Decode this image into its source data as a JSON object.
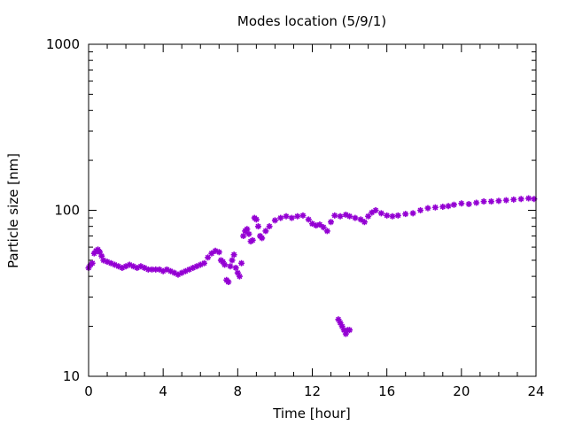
{
  "chart_data": {
    "type": "scatter",
    "title": "Modes location (5/9/1)",
    "xlabel": "Time [hour]",
    "ylabel": "Particle size [nm]",
    "xlim": [
      0,
      24
    ],
    "ylim": [
      10,
      1000
    ],
    "yscale": "log",
    "xticks": [
      "0",
      "4",
      "8",
      "12",
      "16",
      "20",
      "24"
    ],
    "yticks": [
      "10",
      "100",
      "1000"
    ],
    "grid": false,
    "legend": "none",
    "marker_color": "#9400D3",
    "series": [
      {
        "marker": "star",
        "points": [
          [
            0.0,
            45
          ],
          [
            0.1,
            47
          ],
          [
            0.2,
            48
          ],
          [
            0.3,
            55
          ],
          [
            0.4,
            57
          ],
          [
            0.5,
            58
          ],
          [
            0.6,
            56
          ],
          [
            0.7,
            53
          ],
          [
            0.8,
            50
          ],
          [
            1.0,
            49
          ],
          [
            1.2,
            48
          ],
          [
            1.4,
            47
          ],
          [
            1.6,
            46
          ],
          [
            1.8,
            45
          ],
          [
            2.0,
            46
          ],
          [
            2.2,
            47
          ],
          [
            2.4,
            46
          ],
          [
            2.6,
            45
          ],
          [
            2.8,
            46
          ],
          [
            3.0,
            45
          ],
          [
            3.2,
            44
          ],
          [
            3.4,
            44
          ],
          [
            3.6,
            44
          ],
          [
            3.8,
            44
          ],
          [
            4.0,
            43
          ],
          [
            4.2,
            44
          ],
          [
            4.4,
            43
          ],
          [
            4.6,
            42
          ],
          [
            4.8,
            41
          ],
          [
            5.0,
            42
          ],
          [
            5.2,
            43
          ],
          [
            5.4,
            44
          ],
          [
            5.6,
            45
          ],
          [
            5.8,
            46
          ],
          [
            6.0,
            47
          ],
          [
            6.2,
            48
          ],
          [
            6.4,
            52
          ],
          [
            6.6,
            55
          ],
          [
            6.8,
            57
          ],
          [
            7.0,
            56
          ],
          [
            7.1,
            50
          ],
          [
            7.2,
            49
          ],
          [
            7.3,
            47
          ],
          [
            7.4,
            38
          ],
          [
            7.5,
            37
          ],
          [
            7.6,
            46
          ],
          [
            7.7,
            50
          ],
          [
            7.8,
            54
          ],
          [
            7.9,
            45
          ],
          [
            8.0,
            42
          ],
          [
            8.1,
            40
          ],
          [
            8.2,
            48
          ],
          [
            8.3,
            70
          ],
          [
            8.4,
            75
          ],
          [
            8.5,
            77
          ],
          [
            8.6,
            72
          ],
          [
            8.7,
            65
          ],
          [
            8.8,
            66
          ],
          [
            8.9,
            90
          ],
          [
            9.0,
            88
          ],
          [
            9.1,
            80
          ],
          [
            9.2,
            70
          ],
          [
            9.3,
            68
          ],
          [
            9.5,
            75
          ],
          [
            9.7,
            80
          ],
          [
            10.0,
            87
          ],
          [
            10.3,
            90
          ],
          [
            10.6,
            92
          ],
          [
            10.9,
            90
          ],
          [
            11.2,
            92
          ],
          [
            11.5,
            93
          ],
          [
            11.8,
            88
          ],
          [
            12.0,
            83
          ],
          [
            12.2,
            81
          ],
          [
            12.4,
            82
          ],
          [
            12.6,
            79
          ],
          [
            12.8,
            75
          ],
          [
            13.0,
            85
          ],
          [
            13.2,
            93
          ],
          [
            13.5,
            92
          ],
          [
            13.8,
            94
          ],
          [
            14.0,
            92
          ],
          [
            14.3,
            90
          ],
          [
            14.6,
            88
          ],
          [
            14.8,
            85
          ],
          [
            15.0,
            92
          ],
          [
            15.2,
            97
          ],
          [
            15.4,
            100
          ],
          [
            15.7,
            96
          ],
          [
            16.0,
            93
          ],
          [
            16.3,
            92
          ],
          [
            16.6,
            93
          ],
          [
            17.0,
            95
          ],
          [
            17.4,
            96
          ],
          [
            17.8,
            100
          ],
          [
            18.2,
            103
          ],
          [
            18.6,
            104
          ],
          [
            19.0,
            105
          ],
          [
            19.3,
            106
          ],
          [
            19.6,
            108
          ],
          [
            20.0,
            110
          ],
          [
            20.4,
            109
          ],
          [
            20.8,
            111
          ],
          [
            21.2,
            113
          ],
          [
            21.6,
            113
          ],
          [
            22.0,
            114
          ],
          [
            22.4,
            115
          ],
          [
            22.8,
            116
          ],
          [
            23.2,
            117
          ],
          [
            23.6,
            118
          ],
          [
            23.9,
            117
          ],
          [
            13.4,
            22
          ],
          [
            13.5,
            21
          ],
          [
            13.6,
            20
          ],
          [
            13.7,
            19
          ],
          [
            13.8,
            18
          ],
          [
            13.9,
            19
          ],
          [
            14.0,
            19
          ]
        ]
      }
    ]
  }
}
